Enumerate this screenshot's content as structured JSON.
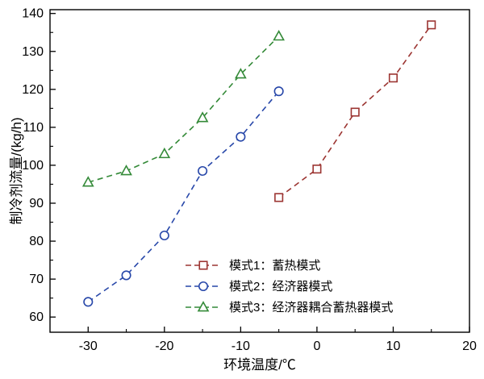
{
  "chart_data": {
    "type": "line",
    "title": "",
    "xlabel": "环境温度/℃",
    "ylabel": "制冷剂流量/(kg/h)",
    "xlim": [
      -35,
      20
    ],
    "ylim": [
      56,
      141
    ],
    "x_ticks": [
      -30,
      -20,
      -10,
      0,
      10,
      20
    ],
    "x_minor_ticks": [
      -25,
      -15,
      -5,
      5,
      15
    ],
    "y_ticks": [
      60,
      70,
      80,
      90,
      100,
      110,
      120,
      130,
      140
    ],
    "y_minor_ticks": [
      65,
      75,
      85,
      95,
      105,
      115,
      125,
      135
    ],
    "grid": false,
    "legend_position": "inside-bottom-center",
    "line_style": "dashed",
    "axis_color": "#000000",
    "series": [
      {
        "name": "模式1：蓄热模式",
        "marker": "square",
        "color": "#9c3532",
        "x": [
          -5,
          0,
          5,
          10,
          15
        ],
        "values": [
          91.5,
          99,
          114,
          123,
          137
        ]
      },
      {
        "name": "模式2：经济器模式",
        "marker": "circle",
        "color": "#2747a9",
        "x": [
          -30,
          -25,
          -20,
          -15,
          -10,
          -5
        ],
        "values": [
          64,
          71,
          81.5,
          98.5,
          107.5,
          119.5
        ]
      },
      {
        "name": "模式3：经济器耦合蓄热器模式",
        "marker": "triangle",
        "color": "#348a38",
        "x": [
          -30,
          -25,
          -20,
          -15,
          -10,
          -5
        ],
        "values": [
          95.5,
          98.5,
          103,
          112.5,
          124,
          134
        ]
      }
    ]
  }
}
